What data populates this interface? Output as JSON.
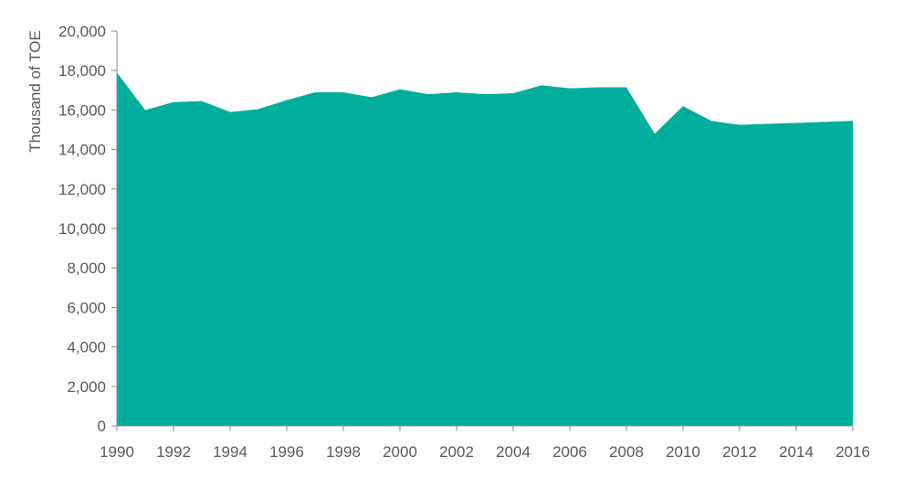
{
  "chart_data": {
    "type": "area",
    "ylabel": "Thousand of TOE",
    "xlabel": "",
    "ylim": [
      0,
      20000
    ],
    "xlim": [
      1990,
      2016
    ],
    "grid": false,
    "legend": "none",
    "y_ticks": [
      "0",
      "2,000",
      "4,000",
      "6,000",
      "8,000",
      "10,000",
      "12,000",
      "14,000",
      "16,000",
      "18,000",
      "20,000"
    ],
    "x_ticks": [
      "1990",
      "1992",
      "1994",
      "1996",
      "1998",
      "2000",
      "2002",
      "2004",
      "2006",
      "2008",
      "2010",
      "2012",
      "2014",
      "2016"
    ],
    "colors": {
      "fill": "#00ae9d",
      "axis": "#8c8c8c",
      "text": "#5a5a5a"
    },
    "series": [
      {
        "x": [
          1990,
          1991,
          1992,
          1993,
          1994,
          1995,
          1996,
          1997,
          1998,
          1999,
          2000,
          2001,
          2002,
          2003,
          2004,
          2005,
          2006,
          2007,
          2008,
          2009,
          2010,
          2011,
          2012,
          2013,
          2014,
          2015,
          2016
        ],
        "values": [
          17900,
          16000,
          16400,
          16450,
          15900,
          16050,
          16500,
          16900,
          16900,
          16650,
          17050,
          16800,
          16900,
          16800,
          16850,
          17250,
          17100,
          17150,
          17150,
          14800,
          16200,
          15450,
          15250,
          15300,
          15350,
          15400,
          15450
        ]
      }
    ]
  }
}
